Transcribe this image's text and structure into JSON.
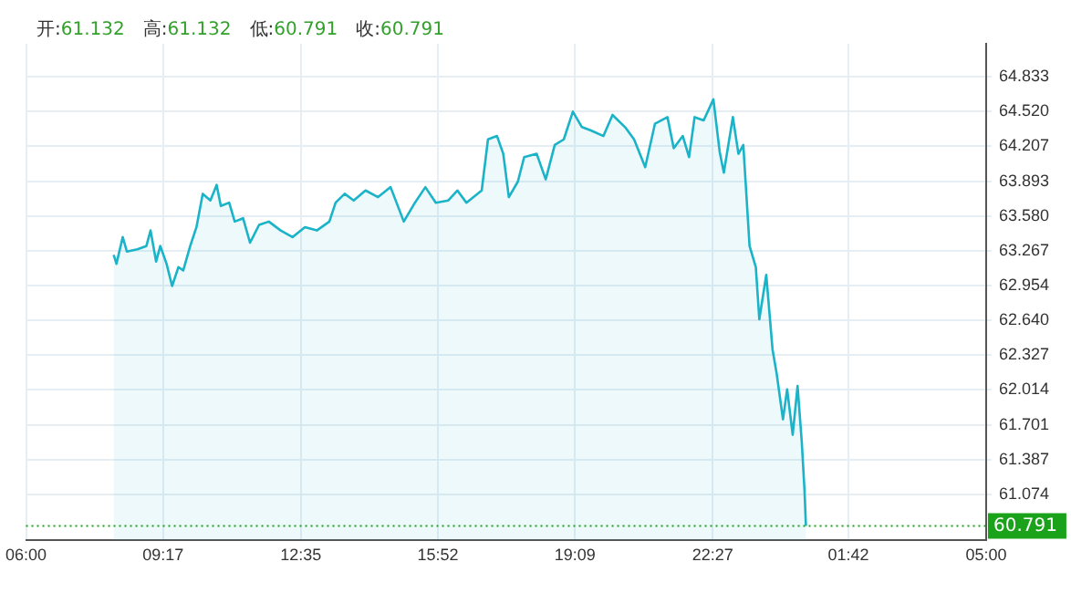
{
  "chart_data": {
    "type": "area",
    "annotations": [
      "开:61.132",
      "高:61.132",
      "低:60.791",
      "收:60.791"
    ],
    "xlim": [
      "2000-01-01T06:00",
      "2000-01-02T05:00"
    ],
    "xticks": [
      {
        "value": "2000-01-01T06:00",
        "label": "06:00"
      },
      {
        "value": "2000-01-01T09:17",
        "label": "09:17"
      },
      {
        "value": "2000-01-01T12:35",
        "label": "12:35"
      },
      {
        "value": "2000-01-01T15:52",
        "label": "15:52"
      },
      {
        "value": "2000-01-01T19:09",
        "label": "19:09"
      },
      {
        "value": "2000-01-01T22:27",
        "label": "22:27"
      },
      {
        "value": "2000-01-02T01:42",
        "label": "01:42"
      },
      {
        "value": "2000-01-02T05:00",
        "label": "05:00"
      }
    ],
    "ylim": [
      60.66,
      65.13
    ],
    "yticks": [
      {
        "value": 61.074,
        "label": "61.074"
      },
      {
        "value": 61.387,
        "label": "61.387"
      },
      {
        "value": 61.701,
        "label": "61.701"
      },
      {
        "value": 62.014,
        "label": "62.014"
      },
      {
        "value": 62.327,
        "label": "62.327"
      },
      {
        "value": 62.64,
        "label": "62.640"
      },
      {
        "value": 62.954,
        "label": "62.954"
      },
      {
        "value": 63.267,
        "label": "63.267"
      },
      {
        "value": 63.58,
        "label": "63.580"
      },
      {
        "value": 63.893,
        "label": "63.893"
      },
      {
        "value": 64.207,
        "label": "64.207"
      },
      {
        "value": 64.52,
        "label": "64.520"
      },
      {
        "value": 64.833,
        "label": "64.833"
      }
    ],
    "grid": true,
    "ref_lines": [
      {
        "axis": "y",
        "value": 60.791,
        "label": "60.791",
        "color": "#1aa31a",
        "line_style": "dotted"
      }
    ],
    "series": [
      {
        "color": "#1ab3c8",
        "x": [
          "2000-01-01T08:06",
          "2000-01-01T08:10",
          "2000-01-01T08:19",
          "2000-01-01T08:25",
          "2000-01-01T08:40",
          "2000-01-01T08:53",
          "2000-01-01T08:59",
          "2000-01-01T09:07",
          "2000-01-01T09:13",
          "2000-01-01T09:22",
          "2000-01-01T09:30",
          "2000-01-01T09:39",
          "2000-01-01T09:46",
          "2000-01-01T09:56",
          "2000-01-01T10:05",
          "2000-01-01T10:14",
          "2000-01-01T10:25",
          "2000-01-01T10:34",
          "2000-01-01T10:40",
          "2000-01-01T10:52",
          "2000-01-01T11:00",
          "2000-01-01T11:12",
          "2000-01-01T11:22",
          "2000-01-01T11:35",
          "2000-01-01T11:49",
          "2000-01-01T12:06",
          "2000-01-01T12:23",
          "2000-01-01T12:41",
          "2000-01-01T12:58",
          "2000-01-01T13:16",
          "2000-01-01T13:25",
          "2000-01-01T13:38",
          "2000-01-01T13:51",
          "2000-01-01T14:08",
          "2000-01-01T14:26",
          "2000-01-01T14:44",
          "2000-01-01T15:03",
          "2000-01-01T15:19",
          "2000-01-01T15:34",
          "2000-01-01T15:49",
          "2000-01-01T16:07",
          "2000-01-01T16:20",
          "2000-01-01T16:33",
          "2000-01-01T16:55",
          "2000-01-01T17:04",
          "2000-01-01T17:17",
          "2000-01-01T17:26",
          "2000-01-01T17:34",
          "2000-01-01T17:47",
          "2000-01-01T17:56",
          "2000-01-01T18:14",
          "2000-01-01T18:27",
          "2000-01-01T18:40",
          "2000-01-01T18:53",
          "2000-01-01T19:06",
          "2000-01-01T19:19",
          "2000-01-01T19:32",
          "2000-01-01T19:50",
          "2000-01-01T20:03",
          "2000-01-01T20:21",
          "2000-01-01T20:34",
          "2000-01-01T20:50",
          "2000-01-01T21:04",
          "2000-01-01T21:22",
          "2000-01-01T21:31",
          "2000-01-01T21:44",
          "2000-01-01T21:53",
          "2000-01-01T22:01",
          "2000-01-01T22:14",
          "2000-01-01T22:28",
          "2000-01-01T22:37",
          "2000-01-01T22:43",
          "2000-01-01T22:56",
          "2000-01-01T23:04",
          "2000-01-01T23:11",
          "2000-01-01T23:20",
          "2000-01-01T23:29",
          "2000-01-01T23:34",
          "2000-01-01T23:44",
          "2000-01-01T23:53",
          "2000-01-01T23:59",
          "2000-01-02T00:08",
          "2000-01-02T00:14",
          "2000-01-02T00:22",
          "2000-01-02T00:29",
          "2000-01-02T00:35",
          "2000-01-02T00:39",
          "2000-01-02T00:41"
        ],
        "values": [
          63.23,
          63.15,
          63.39,
          63.26,
          63.28,
          63.31,
          63.45,
          63.17,
          63.31,
          63.15,
          62.95,
          63.12,
          63.09,
          63.31,
          63.48,
          63.78,
          63.72,
          63.86,
          63.67,
          63.7,
          63.53,
          63.56,
          63.34,
          63.5,
          63.53,
          63.45,
          63.39,
          63.48,
          63.45,
          63.53,
          63.7,
          63.78,
          63.72,
          63.81,
          63.75,
          63.84,
          63.53,
          63.7,
          63.84,
          63.7,
          63.72,
          63.81,
          63.7,
          63.81,
          64.27,
          64.3,
          64.14,
          63.75,
          63.89,
          64.11,
          64.14,
          63.91,
          64.22,
          64.27,
          64.52,
          64.38,
          64.35,
          64.3,
          64.49,
          64.38,
          64.27,
          64.02,
          64.41,
          64.47,
          64.19,
          64.3,
          64.11,
          64.47,
          64.44,
          64.63,
          64.16,
          63.97,
          64.47,
          64.14,
          64.22,
          63.31,
          63.12,
          62.65,
          63.05,
          62.38,
          62.16,
          61.75,
          62.02,
          61.61,
          62.05,
          61.55,
          61.11,
          60.791
        ]
      }
    ]
  }
}
